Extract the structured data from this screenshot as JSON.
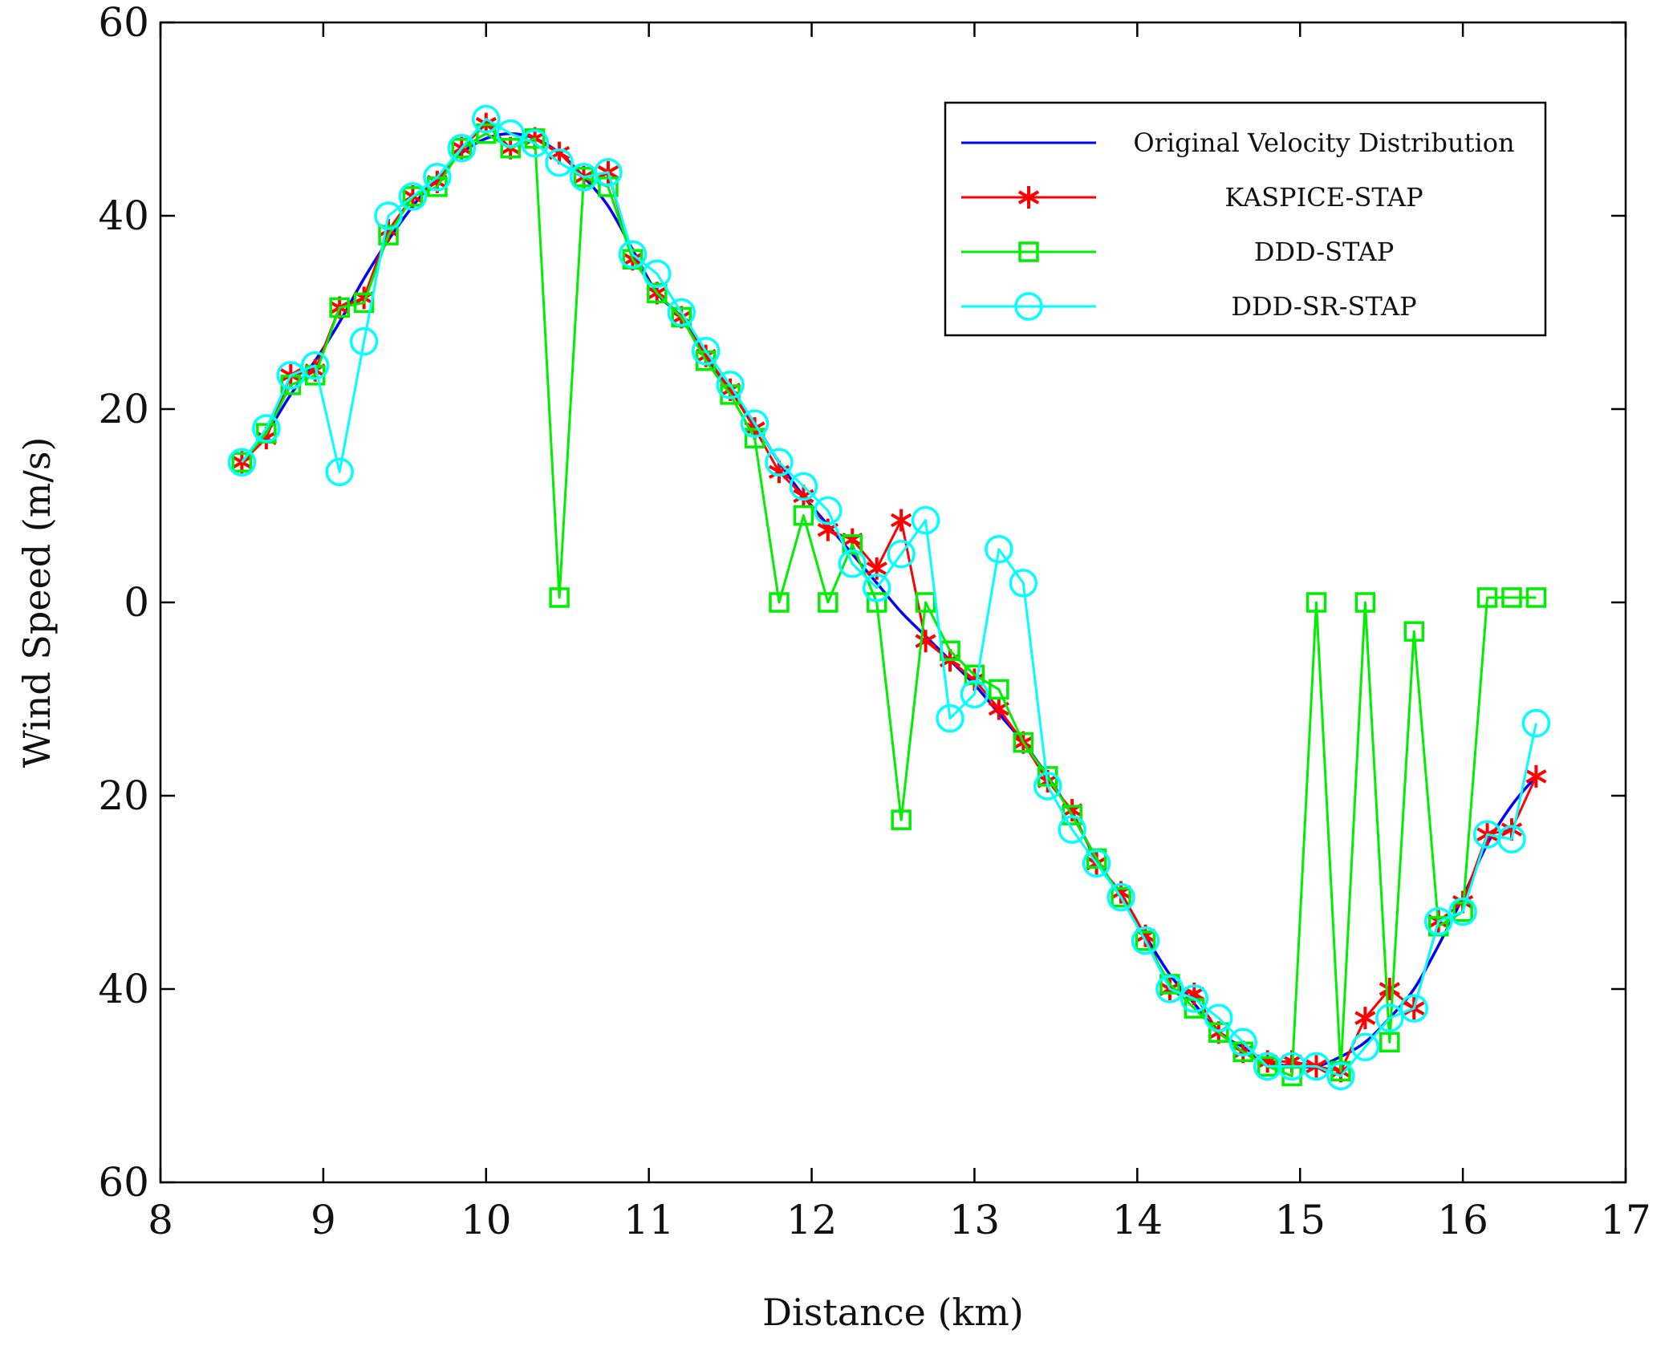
{
  "chart_data": {
    "type": "line",
    "title": "",
    "xlabel": "Distance (km)",
    "ylabel": "Wind Speed (m/s)",
    "xlim": [
      8,
      17
    ],
    "ylim": [
      -60,
      60
    ],
    "x_ticks": [
      8,
      9,
      10,
      11,
      12,
      13,
      14,
      15,
      16,
      17
    ],
    "x_tick_labels": [
      "8",
      "9",
      "10",
      "11",
      "12",
      "13",
      "14",
      "15",
      "16",
      "17"
    ],
    "y_ticks": [
      60,
      40,
      20,
      0,
      -20,
      -40,
      -60
    ],
    "y_tick_labels": [
      "60",
      "40",
      "20",
      "0",
      "20",
      "40",
      "60"
    ],
    "grid": false,
    "legend_position": "top-right",
    "x": [
      8.5,
      8.65,
      8.8,
      8.95,
      9.1,
      9.25,
      9.4,
      9.55,
      9.7,
      9.85,
      10.0,
      10.15,
      10.3,
      10.45,
      10.6,
      10.75,
      10.9,
      11.05,
      11.2,
      11.35,
      11.5,
      11.65,
      11.8,
      11.95,
      12.1,
      12.25,
      12.4,
      12.55,
      12.7,
      12.85,
      13.0,
      13.15,
      13.3,
      13.45,
      13.6,
      13.75,
      13.9,
      14.05,
      14.2,
      14.35,
      14.5,
      14.65,
      14.8,
      14.95,
      15.1,
      15.25,
      15.4,
      15.55,
      15.7,
      15.85,
      16.0,
      16.15,
      16.3,
      16.45
    ],
    "series": [
      {
        "name": "Original Velocity Distribution",
        "color": "#0000ff",
        "marker": "none",
        "values": [
          14.5,
          17.5,
          21.5,
          25.0,
          29.0,
          33.5,
          37.5,
          41.0,
          44.0,
          46.5,
          48.0,
          48.5,
          48.0,
          46.5,
          44.0,
          41.0,
          36.5,
          32.0,
          29.5,
          25.5,
          22.0,
          18.5,
          14.5,
          11.0,
          8.0,
          5.0,
          2.0,
          -1.0,
          -3.5,
          -6.0,
          -8.5,
          -11.5,
          -14.5,
          -18.0,
          -22.0,
          -26.5,
          -30.5,
          -34.5,
          -38.5,
          -41.5,
          -44.5,
          -46.0,
          -47.5,
          -48.0,
          -48.0,
          -47.0,
          -45.5,
          -43.0,
          -40.0,
          -35.5,
          -30.5,
          -25.0,
          -21.0,
          -18.0
        ]
      },
      {
        "name": "KASPICE-STAP",
        "color": "#ff0000",
        "marker": "star",
        "values": [
          14.5,
          17.0,
          23.5,
          24.0,
          30.5,
          31.5,
          38.5,
          42.0,
          43.5,
          47.0,
          49.5,
          47.0,
          48.0,
          46.5,
          44.0,
          44.5,
          35.5,
          32.0,
          29.5,
          25.5,
          22.0,
          18.0,
          13.5,
          11.0,
          7.5,
          6.5,
          3.5,
          8.5,
          -4.0,
          -6.0,
          -8.0,
          -11.0,
          -14.5,
          -18.5,
          -21.5,
          -27.0,
          -30.0,
          -34.5,
          -40.0,
          -40.5,
          -44.5,
          -46.5,
          -47.5,
          -47.5,
          -48.0,
          -48.5,
          -43.0,
          -40.0,
          -42.0,
          -33.0,
          -31.0,
          -24.0,
          -23.5,
          -18.0
        ]
      },
      {
        "name": "DDD-STAP",
        "color": "#00ee00",
        "marker": "square",
        "values": [
          14.5,
          17.5,
          22.5,
          23.5,
          30.5,
          31.0,
          38.0,
          42.0,
          43.0,
          47.0,
          48.5,
          47.0,
          48.0,
          0.5,
          44.0,
          43.0,
          35.5,
          32.0,
          29.5,
          25.0,
          21.5,
          17.0,
          0.0,
          9.0,
          0.0,
          6.0,
          0.0,
          -22.5,
          0.0,
          -5.0,
          -7.5,
          -9.0,
          -14.5,
          -18.0,
          -22.0,
          -26.5,
          -30.5,
          -35.0,
          -39.5,
          -42.0,
          -44.5,
          -46.5,
          -48.0,
          -49.0,
          0.0,
          -48.5,
          0.0,
          -45.5,
          -3.0,
          -33.5,
          -32.0,
          0.5,
          0.5,
          0.5
        ]
      },
      {
        "name": "DDD-SR-STAP",
        "color": "#00ffff",
        "marker": "circle",
        "values": [
          14.5,
          18.0,
          23.5,
          24.5,
          13.5,
          27.0,
          40.0,
          42.0,
          44.0,
          47.0,
          50.0,
          48.5,
          47.5,
          45.5,
          44.0,
          44.5,
          36.0,
          34.0,
          30.0,
          26.0,
          22.5,
          18.5,
          14.5,
          12.0,
          9.5,
          4.0,
          1.5,
          5.0,
          8.5,
          -12.0,
          -9.5,
          5.5,
          2.0,
          -19.0,
          -23.5,
          -27.0,
          -30.5,
          -35.0,
          -40.0,
          -41.0,
          -43.0,
          -45.5,
          -48.0,
          -48.0,
          -48.0,
          -49.0,
          -46.0,
          -43.0,
          -42.0,
          -33.0,
          -32.0,
          -24.0,
          -24.5,
          -12.5
        ]
      }
    ]
  }
}
